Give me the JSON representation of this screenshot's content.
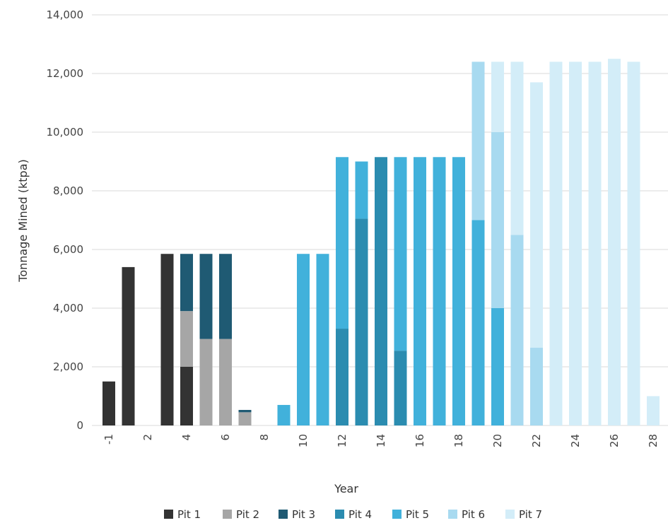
{
  "chart_data": {
    "type": "bar",
    "stacked": true,
    "title": "",
    "xlabel": "Year",
    "ylabel": "Tonnage Mined (ktpa)",
    "ylim": [
      0,
      14000
    ],
    "yticks": [
      "0",
      "2,000",
      "4,000",
      "6,000",
      "8,000",
      "10,000",
      "12,000",
      "14,000"
    ],
    "ytick_values": [
      0,
      2000,
      4000,
      6000,
      8000,
      10000,
      12000,
      14000
    ],
    "grid": true,
    "legend_position": "bottom",
    "categories": [
      "-1",
      "1",
      "2",
      "3",
      "4",
      "5",
      "6",
      "7",
      "8",
      "9",
      "10",
      "11",
      "12",
      "13",
      "14",
      "15",
      "16",
      "17",
      "18",
      "19",
      "20",
      "21",
      "22",
      "23",
      "24",
      "25",
      "26",
      "27",
      "28"
    ],
    "xtick_labels": [
      "-1",
      "",
      "2",
      "",
      "4",
      "",
      "6",
      "",
      "8",
      "",
      "10",
      "",
      "12",
      "",
      "14",
      "",
      "16",
      "",
      "18",
      "",
      "20",
      "",
      "22",
      "",
      "24",
      "",
      "26",
      "",
      "28"
    ],
    "series": [
      {
        "name": "Pit 1",
        "color": "#333333",
        "values": [
          1500,
          5400,
          0,
          5850,
          2000,
          0,
          0,
          0,
          0,
          0,
          0,
          0,
          0,
          0,
          0,
          0,
          0,
          0,
          0,
          0,
          0,
          0,
          0,
          0,
          0,
          0,
          0,
          0,
          0
        ]
      },
      {
        "name": "Pit 2",
        "color": "#a6a6a6",
        "values": [
          0,
          0,
          0,
          0,
          1900,
          2950,
          2950,
          450,
          0,
          0,
          0,
          0,
          0,
          0,
          0,
          0,
          0,
          0,
          0,
          0,
          0,
          0,
          0,
          0,
          0,
          0,
          0,
          0,
          0
        ]
      },
      {
        "name": "Pit 3",
        "color": "#1f5a73",
        "values": [
          0,
          0,
          0,
          0,
          1950,
          2900,
          2900,
          80,
          0,
          0,
          0,
          0,
          0,
          0,
          0,
          0,
          0,
          0,
          0,
          0,
          0,
          0,
          0,
          0,
          0,
          0,
          0,
          0,
          0
        ]
      },
      {
        "name": "Pit 4",
        "color": "#2b8cb0",
        "values": [
          0,
          0,
          0,
          0,
          0,
          0,
          0,
          0,
          0,
          0,
          0,
          0,
          3300,
          7050,
          9150,
          2550,
          0,
          0,
          0,
          0,
          0,
          0,
          0,
          0,
          0,
          0,
          0,
          0,
          0
        ]
      },
      {
        "name": "Pit 5",
        "color": "#41b1db",
        "values": [
          0,
          0,
          0,
          0,
          0,
          0,
          0,
          0,
          0,
          700,
          5850,
          5850,
          5850,
          1950,
          0,
          6600,
          9150,
          9150,
          9150,
          7000,
          4000,
          0,
          0,
          0,
          0,
          0,
          0,
          0,
          0
        ]
      },
      {
        "name": "Pit 6",
        "color": "#a8daf0",
        "values": [
          0,
          0,
          0,
          0,
          0,
          0,
          0,
          0,
          0,
          0,
          0,
          0,
          0,
          0,
          0,
          0,
          0,
          0,
          0,
          5400,
          6000,
          6500,
          2650,
          0,
          0,
          0,
          0,
          0,
          0
        ]
      },
      {
        "name": "Pit 7",
        "color": "#d3edf8",
        "values": [
          0,
          0,
          0,
          0,
          0,
          0,
          0,
          0,
          0,
          0,
          0,
          0,
          0,
          0,
          0,
          0,
          0,
          0,
          0,
          0,
          2400,
          5900,
          9050,
          12400,
          12400,
          12400,
          12500,
          12400,
          1000
        ]
      }
    ]
  }
}
